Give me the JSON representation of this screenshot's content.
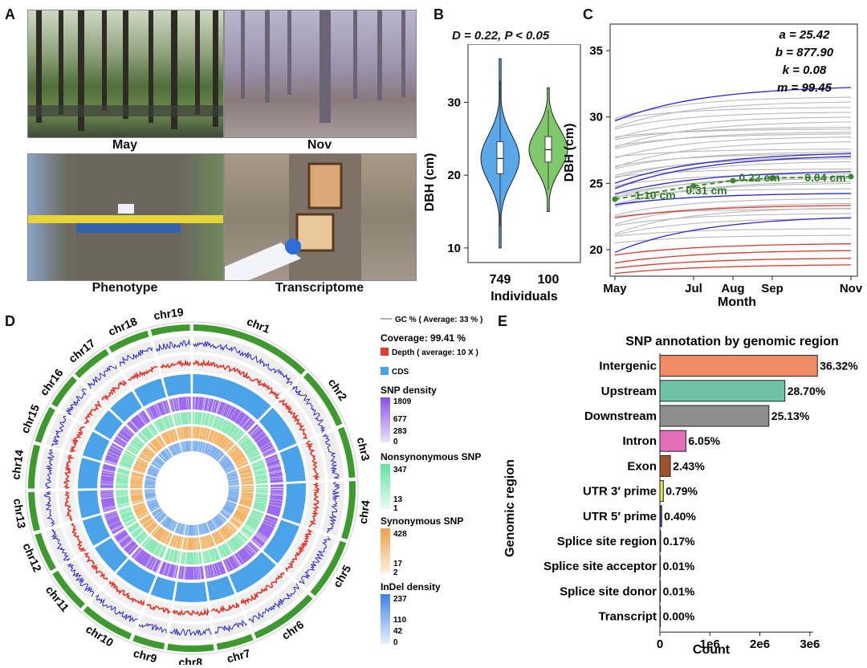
{
  "panelA": {
    "label": "A",
    "captions": [
      "May",
      "Nov",
      "Phenotype",
      "Transcriptome"
    ]
  },
  "panelB": {
    "label": "B",
    "stat": "D = 0.22, P < 0.05",
    "ylabel": "DBH (cm)",
    "xlabel": "Individuals",
    "yticks": [
      "10",
      "20",
      "30"
    ],
    "groups": [
      "749",
      "100"
    ]
  },
  "panelC": {
    "label": "C",
    "ylabel": "DBH (cm)",
    "xlabel": "Month",
    "yticks": [
      "20",
      "25",
      "30",
      "35"
    ],
    "xticks": [
      "May",
      "Jul",
      "Aug",
      "Sep",
      "Nov"
    ],
    "params": [
      "a = 25.42",
      "b = 877.90",
      "k = 0.08",
      "m = 99.45"
    ],
    "increments": [
      "1.10 cm",
      "0.31 cm",
      "0.22 cm",
      "0.04 cm"
    ]
  },
  "panelD": {
    "label": "D",
    "chromosomes": [
      "chr1",
      "chr2",
      "chr3",
      "chr4",
      "chr5",
      "chr6",
      "chr7",
      "chr8",
      "chr9",
      "chr10",
      "chr11",
      "chr12",
      "chr13",
      "chr14",
      "chr15",
      "chr16",
      "chr17",
      "chr18",
      "chr19"
    ],
    "legend": {
      "gc": "GC % ( Average: 33 % )",
      "coverage": "Coverage: 99.41 %",
      "depth": "Depth ( average: 10 X )",
      "cds": "CDS",
      "snp_title": "SNP density",
      "snp_ticks": [
        "1809",
        "677",
        "283",
        "0"
      ],
      "nonsyn_title": "Nonsynonymous SNP",
      "nonsyn_ticks": [
        "347",
        "13",
        "1"
      ],
      "syn_title": "Synonymous SNP",
      "syn_ticks": [
        "428",
        "17",
        "2"
      ],
      "indel_title": "InDel density",
      "indel_ticks": [
        "237",
        "110",
        "42",
        "0"
      ]
    },
    "colors": {
      "chrom": "#3e9a2f",
      "gc": "#2b2bd0",
      "depth": "#e23a2e",
      "cds": "#4aa3e8",
      "snp": "#9b6cf0",
      "nonsyn": "#8fe8b8",
      "syn": "#f2b56a",
      "indel": "#7fb0ee"
    }
  },
  "panelE": {
    "label": "E",
    "title": "SNP annotation by genomic region",
    "ylabel": "Genomic region",
    "xlabel": "Count",
    "xticks": [
      "0",
      "1e6",
      "2e6",
      "3e6"
    ]
  },
  "chart_data": [
    {
      "type": "violin",
      "panel": "B",
      "categories": [
        "749",
        "100"
      ],
      "colors": [
        "#5aa8ea",
        "#7fc86b"
      ],
      "ylim": [
        8,
        38
      ],
      "medians": [
        22.3,
        23.5
      ],
      "quartiles": [
        [
          20.2,
          24.6
        ],
        [
          21.8,
          25.3
        ]
      ],
      "ranges": [
        [
          10,
          36
        ],
        [
          15,
          32
        ]
      ]
    },
    {
      "type": "line",
      "panel": "C",
      "x": [
        "May",
        "Jul",
        "Aug",
        "Sep",
        "Nov"
      ],
      "ylim": [
        18,
        37
      ],
      "highlight_series": [
        {
          "name": "mean",
          "values": [
            23.8,
            24.8,
            25.2,
            25.4,
            25.5
          ]
        }
      ]
    },
    {
      "type": "bar",
      "panel": "E",
      "orientation": "horizontal",
      "categories": [
        "Intergenic",
        "Upstream",
        "Downstream",
        "Intron",
        "Exon",
        "UTR 3′ prime",
        "UTR 5′ prime",
        "Splice site region",
        "Splice site acceptor",
        "Splice site donor",
        "Transcript"
      ],
      "labels": [
        "36.32%",
        "28.70%",
        "25.13%",
        "6.05%",
        "2.43%",
        "0.79%",
        "0.40%",
        "0.17%",
        "0.01%",
        "0.01%",
        "0.00%"
      ],
      "values": [
        3150000,
        2500000,
        2180000,
        520000,
        210000,
        69000,
        35000,
        15000,
        900,
        800,
        100
      ],
      "colors": [
        "#ef8c61",
        "#6fc2a5",
        "#8e8e8e",
        "#e36fb8",
        "#a0522d",
        "#e8e24a",
        "#3b3b8f",
        "#777",
        "#777",
        "#777",
        "#777"
      ],
      "xlim": [
        0,
        3500000
      ]
    }
  ]
}
